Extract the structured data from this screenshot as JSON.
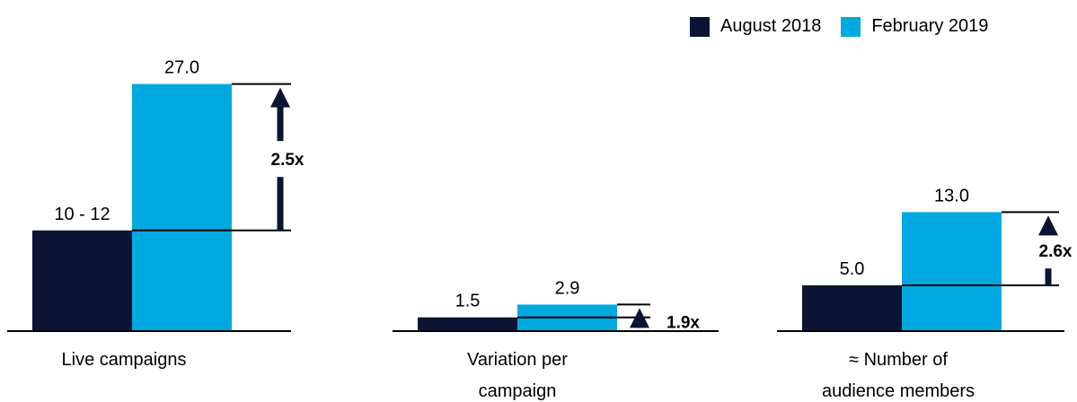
{
  "chart_data": {
    "type": "bar",
    "colors": {
      "August 2018": "#0b1533",
      "February 2019": "#00a9e0"
    },
    "series": [
      {
        "name": "August 2018"
      },
      {
        "name": "February 2019"
      }
    ],
    "groups": [
      {
        "label": "Live campaigns",
        "values": [
          11,
          27.0
        ],
        "value_labels": [
          "10 - 12",
          "27.0"
        ],
        "multiplier": "2.5x"
      },
      {
        "label": "Variation per campaign",
        "values": [
          1.5,
          2.9
        ],
        "value_labels": [
          "1.5",
          "2.9"
        ],
        "multiplier": "1.9x"
      },
      {
        "label": "≈ Number of audience members",
        "values": [
          5.0,
          13.0
        ],
        "value_labels": [
          "5.0",
          "13.0"
        ],
        "multiplier": "2.6x"
      }
    ]
  },
  "legend": {
    "august": "August 2018",
    "february": "February 2019"
  }
}
